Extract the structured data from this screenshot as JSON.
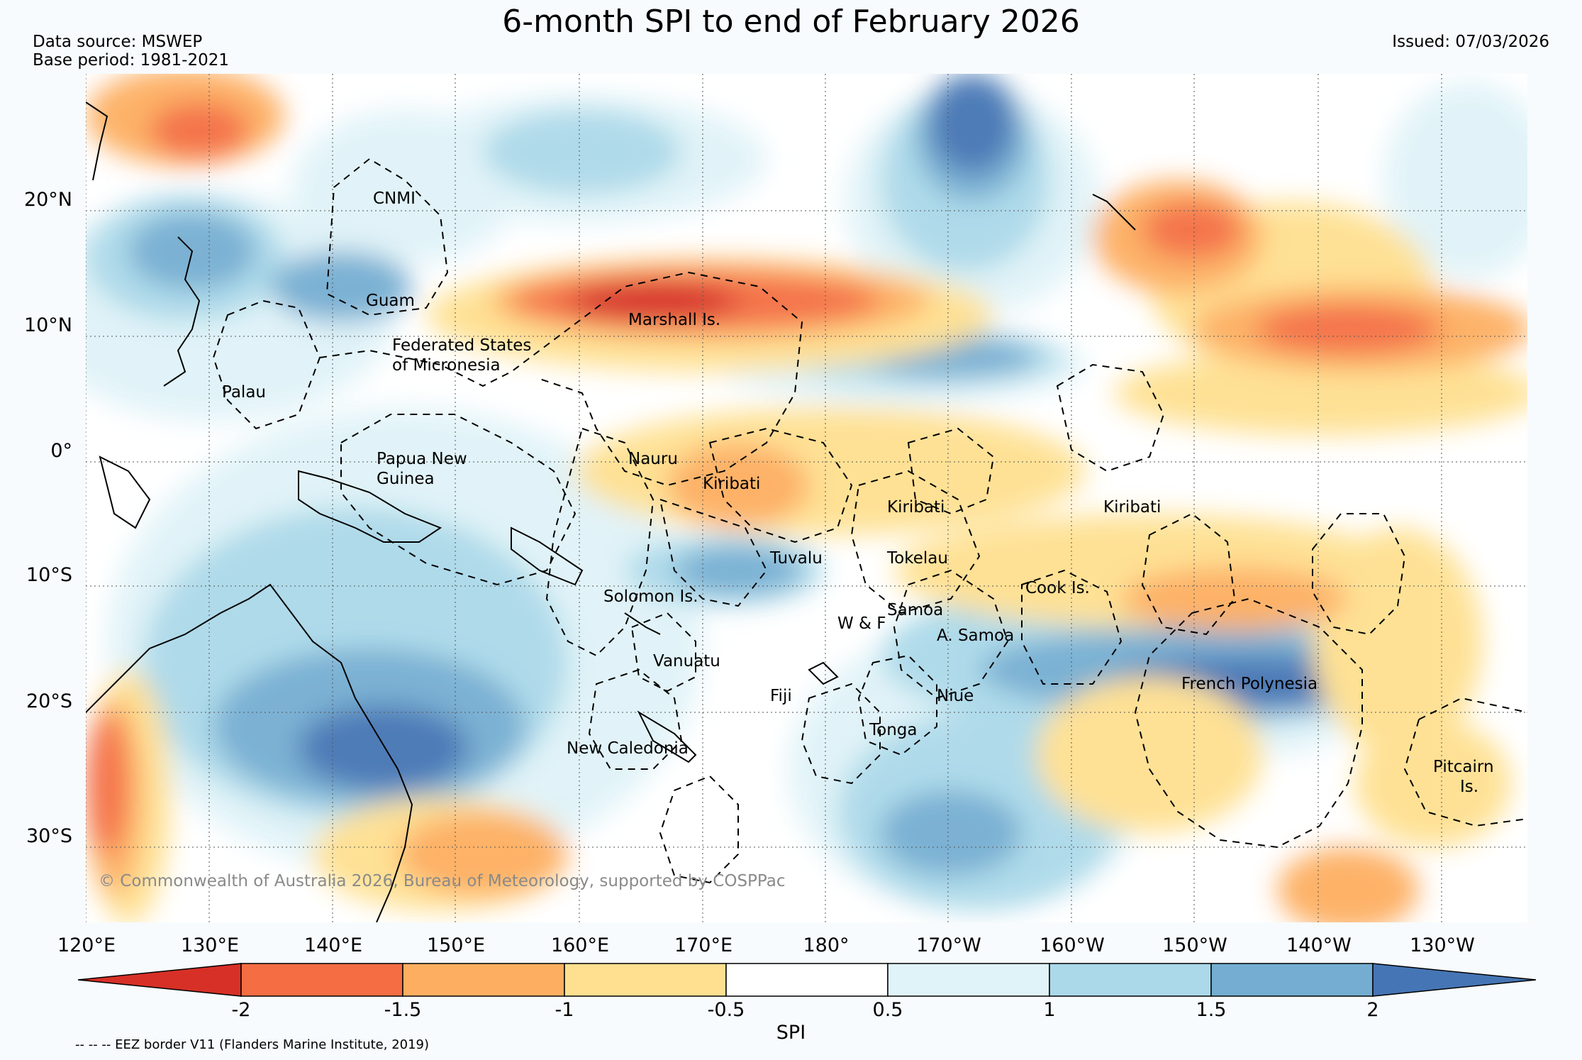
{
  "title": "6-month SPI to end of February 2026",
  "data_source": "Data source: MSWEP",
  "base_period": "Base period: 1981-2021",
  "issued": "Issued: 07/03/2026",
  "copyright": "© Commonwealth of Australia 2026, Bureau of Meteorology, supported by COSPPac",
  "eez_note": "-- -- -- EEZ border V11 (Flanders Marine Institute, 2019)",
  "colorbar": {
    "label": "SPI",
    "ticks": [
      "-2",
      "-1.5",
      "-1",
      "-0.5",
      "0.5",
      "1",
      "1.5",
      "2"
    ],
    "colors": [
      "#d73027",
      "#f46d43",
      "#fdae61",
      "#fee090",
      "#ffffff",
      "#e0f3f8",
      "#abd9e9",
      "#74add1",
      "#4575b4"
    ]
  },
  "axes": {
    "lat_labels": [
      "20°N",
      "10°N",
      "0°",
      "10°S",
      "20°S",
      "30°S"
    ],
    "lon_labels": [
      "120°E",
      "130°E",
      "140°E",
      "150°E",
      "160°E",
      "170°E",
      "180°",
      "170°W",
      "160°W",
      "150°W",
      "140°W",
      "130°W"
    ]
  },
  "regions": [
    {
      "name": "CNMI",
      "lines": [
        "CNMI"
      ]
    },
    {
      "name": "Guam",
      "lines": [
        "Guam"
      ]
    },
    {
      "name": "Marshall Is.",
      "lines": [
        "Marshall Is."
      ]
    },
    {
      "name": "Federated States of Micronesia",
      "lines": [
        "Federated States",
        "of Micronesia"
      ]
    },
    {
      "name": "Palau",
      "lines": [
        "Palau"
      ]
    },
    {
      "name": "Papua New Guinea",
      "lines": [
        "Papua New",
        "Guinea"
      ]
    },
    {
      "name": "Nauru",
      "lines": [
        "Nauru"
      ]
    },
    {
      "name": "Kiribati (Gilbert)",
      "lines": [
        "Kiribati"
      ]
    },
    {
      "name": "Kiribati (Phoenix)",
      "lines": [
        "Kiribati"
      ]
    },
    {
      "name": "Kiribati (Line)",
      "lines": [
        "Kiribati"
      ]
    },
    {
      "name": "Tuvalu",
      "lines": [
        "Tuvalu"
      ]
    },
    {
      "name": "Tokelau",
      "lines": [
        "Tokelau"
      ]
    },
    {
      "name": "Cook Is.",
      "lines": [
        "Cook Is."
      ]
    },
    {
      "name": "Solomon Is.",
      "lines": [
        "Solomon Is."
      ]
    },
    {
      "name": "Samoa",
      "lines": [
        "Samoa"
      ]
    },
    {
      "name": "W & F",
      "lines": [
        "W & F"
      ]
    },
    {
      "name": "A. Samoa",
      "lines": [
        "A. Samoa"
      ]
    },
    {
      "name": "Vanuatu",
      "lines": [
        "Vanuatu"
      ]
    },
    {
      "name": "French Polynesia",
      "lines": [
        "French Polynesia"
      ]
    },
    {
      "name": "Fiji",
      "lines": [
        "Fiji"
      ]
    },
    {
      "name": "Niue",
      "lines": [
        "Niue"
      ]
    },
    {
      "name": "Tonga",
      "lines": [
        "Tonga"
      ]
    },
    {
      "name": "New Caledonia",
      "lines": [
        "New Caledonia"
      ]
    },
    {
      "name": "Pitcairn Is.",
      "lines": [
        "Pitcairn",
        "Is."
      ]
    }
  ]
}
